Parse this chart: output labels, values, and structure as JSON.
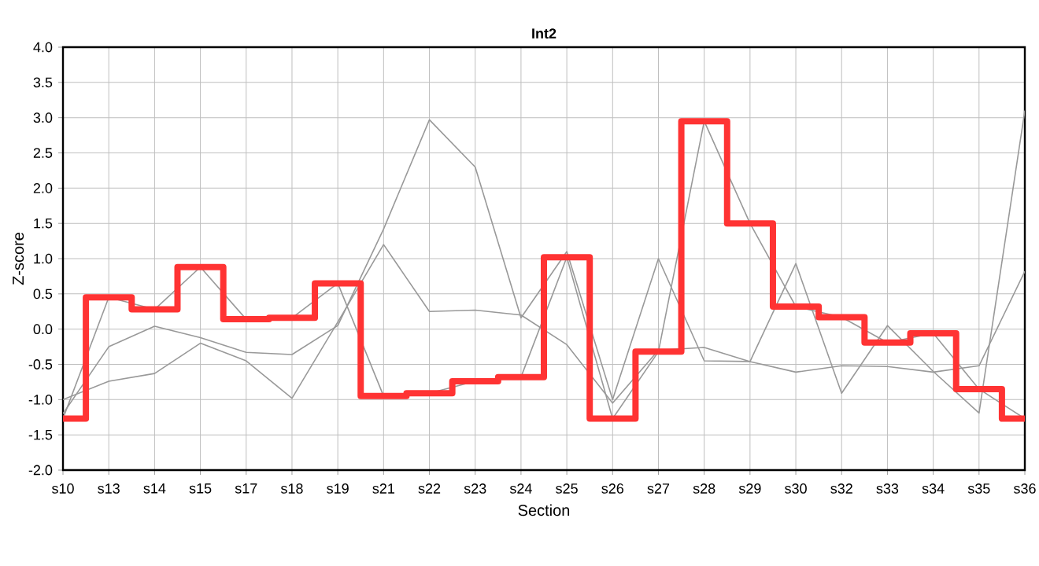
{
  "chart_data": {
    "type": "line",
    "title": "Int2",
    "xlabel": "Section",
    "ylabel": "Z-score",
    "categories": [
      "s10",
      "s13",
      "s14",
      "s15",
      "s17",
      "s18",
      "s19",
      "s21",
      "s22",
      "s23",
      "s24",
      "s25",
      "s26",
      "s27",
      "s28",
      "s29",
      "s30",
      "s32",
      "s33",
      "s34",
      "s35",
      "s36"
    ],
    "ylim": [
      -2,
      4
    ],
    "yticks": [
      {
        "value": -2,
        "label": "-2.0"
      },
      {
        "value": -1.5,
        "label": "-1.5"
      },
      {
        "value": -1,
        "label": "-1.0"
      },
      {
        "value": -0.5,
        "label": "-0.5"
      },
      {
        "value": 0,
        "label": "0.0"
      },
      {
        "value": 0.5,
        "label": "0.5"
      },
      {
        "value": 1,
        "label": "1.0"
      },
      {
        "value": 1.5,
        "label": "1.5"
      },
      {
        "value": 2,
        "label": "2.0"
      },
      {
        "value": 2.5,
        "label": "2.5"
      },
      {
        "value": 3,
        "label": "3.0"
      },
      {
        "value": 3.5,
        "label": "3.5"
      },
      {
        "value": 4,
        "label": "4.0"
      }
    ],
    "grid": true,
    "marker": "none",
    "series": [
      {
        "color": "#999999",
        "values": [
          -1.2,
          -0.25,
          0.04,
          -0.12,
          -0.33,
          -0.36,
          0.05,
          1.42,
          2.97,
          2.3,
          0.16,
          1.1,
          -1.0,
          1.0,
          -0.45,
          -0.46,
          0.93,
          -0.91,
          0.05,
          -0.6,
          -1.19,
          3.1
        ]
      },
      {
        "color": "#999999",
        "values": [
          -1.0,
          -0.74,
          -0.63,
          -0.2,
          -0.45,
          -0.98,
          0.1,
          1.2,
          0.25,
          0.27,
          0.2,
          -0.22,
          -1.05,
          -0.3,
          -0.26,
          -0.46,
          -0.61,
          -0.52,
          -0.53,
          -0.61,
          -0.52,
          0.82
        ]
      },
      {
        "color": "#999999",
        "values": [
          -1.27,
          0.45,
          0.28,
          0.88,
          0.14,
          0.16,
          0.65,
          -0.95,
          -0.91,
          -0.74,
          -0.68,
          1.02,
          -1.27,
          -0.32,
          2.95,
          1.5,
          0.32,
          0.17,
          -0.19,
          -0.06,
          -0.85,
          -1.27
        ]
      },
      {
        "type": "step",
        "color": "#ff3333",
        "values": [
          -1.27,
          0.45,
          0.28,
          0.88,
          0.14,
          0.16,
          0.65,
          -0.95,
          -0.91,
          -0.74,
          -0.68,
          1.02,
          -1.27,
          -0.32,
          2.95,
          1.5,
          0.32,
          0.17,
          -0.19,
          -0.06,
          -0.85,
          -1.27
        ]
      }
    ]
  }
}
